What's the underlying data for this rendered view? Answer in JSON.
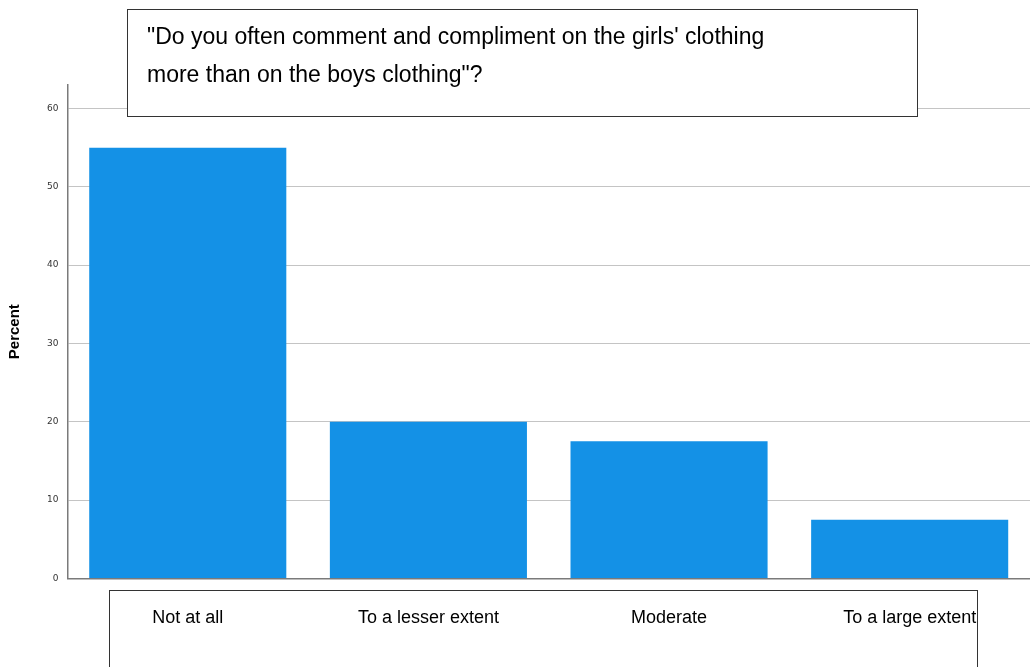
{
  "chart_data": {
    "type": "bar",
    "title": "\"Do you often comment and compliment on the girls' clothing more than on the boys clothing\"?",
    "ylabel": "Percent",
    "categories": [
      "Not at all",
      "To a lesser extent",
      "Moderate",
      "To a large extent"
    ],
    "values": [
      55,
      20,
      17.5,
      7.5
    ],
    "color": "#1491e6",
    "ylim": [
      0,
      63
    ],
    "yticks": [
      0,
      10,
      20,
      30,
      40,
      50,
      60
    ],
    "grid": "y"
  }
}
